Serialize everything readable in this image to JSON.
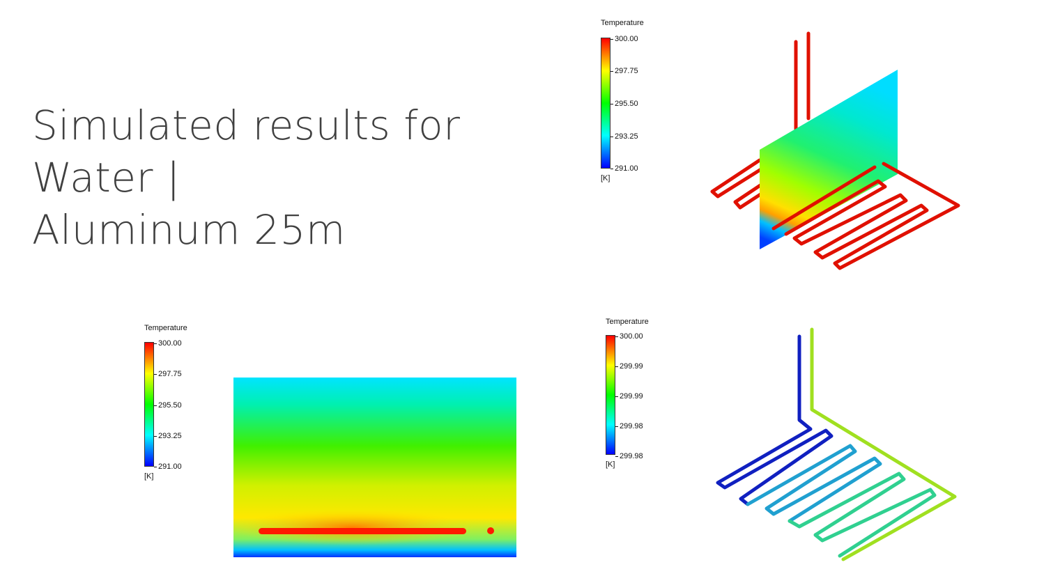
{
  "title": {
    "line1": "Simulated results for Water |",
    "line2": "Aluminum 25m"
  },
  "legends": [
    {
      "title": "Temperature",
      "ticks": [
        "300.00",
        "297.75",
        "295.50",
        "293.25",
        "291.00"
      ],
      "unit": "[K]"
    },
    {
      "title": "Temperature",
      "ticks": [
        "300.00",
        "297.75",
        "295.50",
        "293.25",
        "291.00"
      ],
      "unit": "[K]"
    },
    {
      "title": "Temperature",
      "ticks": [
        "300.00",
        "299.99",
        "299.99",
        "299.98",
        "299.98"
      ],
      "unit": "[K]"
    }
  ],
  "colors": {
    "hot": "#ff1a00",
    "cold": "#0000ff",
    "title_text": "#404040"
  },
  "images": {
    "top_right": "3D temperature contour: vertical section plane with serpentine pipe",
    "bottom_center": "2D temperature contour of section plane",
    "bottom_right": "3D pipe wall temperature"
  }
}
